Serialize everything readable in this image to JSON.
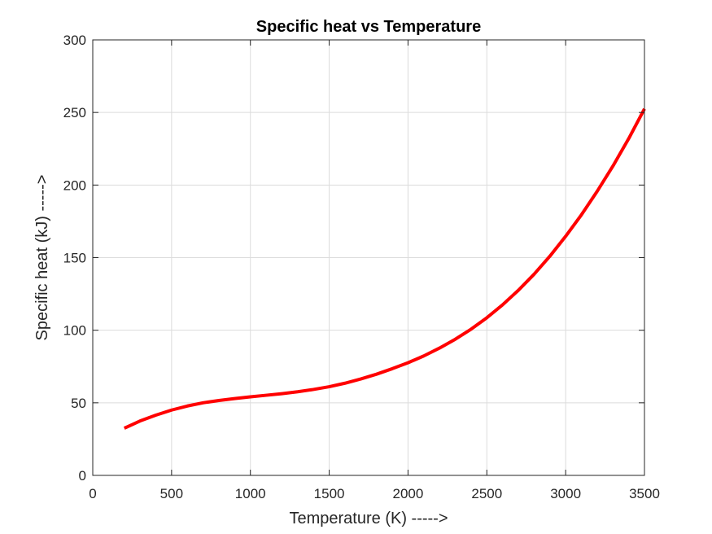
{
  "chart_data": {
    "type": "line",
    "title": "Specific heat vs Temperature",
    "xlabel": "Temperature (K) ----->",
    "ylabel": "Specific heat (kJ) ----->",
    "xlim": [
      0,
      3500
    ],
    "ylim": [
      0,
      300
    ],
    "xticks": [
      0,
      500,
      1000,
      1500,
      2000,
      2500,
      3000,
      3500
    ],
    "yticks": [
      0,
      50,
      100,
      150,
      200,
      250,
      300
    ],
    "grid": true,
    "legend": "none",
    "series": [
      {
        "color": "#ff0000",
        "x": [
          200,
          300,
          400,
          500,
          600,
          700,
          800,
          900,
          1000,
          1100,
          1200,
          1300,
          1400,
          1500,
          1600,
          1700,
          1800,
          1900,
          2000,
          2100,
          2200,
          2300,
          2400,
          2500,
          2600,
          2700,
          2800,
          2900,
          3000,
          3100,
          3200,
          3300,
          3400,
          3500
        ],
        "y": [
          32.5,
          37.5,
          41.5,
          45.0,
          47.8,
          50.0,
          51.6,
          52.9,
          54.1,
          55.2,
          56.3,
          57.6,
          59.2,
          61.1,
          63.5,
          66.4,
          69.7,
          73.5,
          77.6,
          82.3,
          87.7,
          93.8,
          100.7,
          108.6,
          117.5,
          127.5,
          138.6,
          151.0,
          164.7,
          179.5,
          195.7,
          213.1,
          232.0,
          252.5
        ]
      }
    ]
  }
}
